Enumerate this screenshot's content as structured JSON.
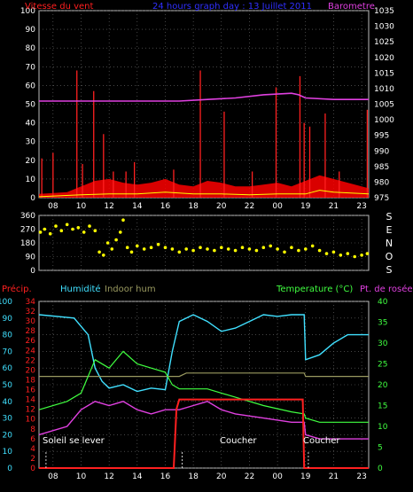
{
  "colors": {
    "wind": "#ff2020",
    "baro": "#e040e0",
    "title": "#3030ff",
    "gust_fill": "#ff0000",
    "wind_avg": "#ffff00",
    "sky": "#ffffff",
    "humidity": "#40e0ff",
    "indoor_hum": "#9a9a60",
    "temperature": "#40ff40",
    "dew_point": "#e040e0",
    "precip": "#ff2020",
    "text": "#ffffff",
    "grid": "#707070"
  },
  "header": {
    "wind_label": "Vitesse du vent",
    "title": "24 hours graph day : 13 Juillet 2011",
    "baro_label": "Barometre"
  },
  "panel3_labels": {
    "precip": "Précip.",
    "humidity": "Humidité",
    "indoor_hum": "Indoor hum",
    "temperature": "Temperature (°C)",
    "dew_point": "Pt. de rosée"
  },
  "annotations": {
    "sunrise": "Soleil se lever",
    "sunset1": "Coucher",
    "sunset2": "Coucher"
  },
  "direction_letters": [
    "S",
    "E",
    "N",
    "O",
    "S"
  ],
  "chart_data": [
    {
      "type": "area",
      "name": "wind_and_pressure",
      "x_ticks": [
        "08",
        "10",
        "12",
        "14",
        "16",
        "18",
        "20",
        "22",
        "00",
        "19",
        "21",
        "23"
      ],
      "y_left": {
        "label": "Vitesse du vent",
        "ticks": [
          0,
          10,
          20,
          30,
          40,
          50,
          60,
          70,
          80,
          90,
          100
        ],
        "ylim": [
          0,
          100
        ]
      },
      "y_right": {
        "label": "Barometre",
        "ticks": [
          975,
          980,
          985,
          990,
          995,
          1000,
          1005,
          1010,
          1015,
          1020,
          1025,
          1030,
          1035
        ],
        "ylim": [
          975,
          1035
        ]
      },
      "pressure_series": [
        [
          6,
          1006
        ],
        [
          9,
          1006
        ],
        [
          12,
          1006
        ],
        [
          14,
          1006
        ],
        [
          16,
          1006
        ],
        [
          18,
          1006.5
        ],
        [
          20,
          1007
        ],
        [
          22,
          1008
        ],
        [
          24,
          1008.5
        ],
        [
          24.5,
          1008
        ],
        [
          25,
          1007
        ],
        [
          27,
          1006.5
        ],
        [
          29.5,
          1006.5
        ]
      ],
      "wind_gust_spikes": [
        [
          6.2,
          21
        ],
        [
          7.0,
          24
        ],
        [
          8.7,
          68
        ],
        [
          9.1,
          18
        ],
        [
          9.9,
          57
        ],
        [
          10.6,
          34
        ],
        [
          11.3,
          14
        ],
        [
          12.2,
          14
        ],
        [
          12.8,
          19
        ],
        [
          15.6,
          15
        ],
        [
          17.5,
          68
        ],
        [
          19.2,
          46
        ],
        [
          21.2,
          14
        ],
        [
          22.9,
          59
        ],
        [
          24.6,
          65
        ],
        [
          24.9,
          40
        ],
        [
          25.3,
          38
        ],
        [
          26.4,
          45
        ],
        [
          27.4,
          14
        ],
        [
          29.4,
          47
        ]
      ],
      "wind_gust_base": [
        [
          6,
          2
        ],
        [
          8,
          3
        ],
        [
          9,
          6
        ],
        [
          10,
          9
        ],
        [
          11,
          10
        ],
        [
          12,
          8
        ],
        [
          13,
          7
        ],
        [
          14,
          8
        ],
        [
          15,
          10
        ],
        [
          16,
          7
        ],
        [
          17,
          6
        ],
        [
          18,
          9
        ],
        [
          19,
          8
        ],
        [
          20,
          6
        ],
        [
          21,
          6
        ],
        [
          22,
          7
        ],
        [
          23,
          8
        ],
        [
          24,
          6
        ],
        [
          25,
          9
        ],
        [
          26,
          12
        ],
        [
          27,
          10
        ],
        [
          28,
          8
        ],
        [
          29.5,
          5
        ]
      ],
      "wind_avg": [
        [
          6,
          0.5
        ],
        [
          9,
          1.5
        ],
        [
          11,
          2
        ],
        [
          13,
          2
        ],
        [
          15,
          3
        ],
        [
          17,
          2
        ],
        [
          19,
          2
        ],
        [
          21,
          1.5
        ],
        [
          23,
          2
        ],
        [
          25,
          2
        ],
        [
          26,
          4
        ],
        [
          27,
          3
        ],
        [
          29.5,
          2
        ]
      ]
    },
    {
      "type": "scatter",
      "name": "wind_direction",
      "y_ticks": [
        0,
        90,
        180,
        270,
        360
      ],
      "ylim": [
        0,
        360
      ],
      "points": [
        [
          6.1,
          250
        ],
        [
          6.4,
          270
        ],
        [
          6.8,
          240
        ],
        [
          7.2,
          290
        ],
        [
          7.6,
          260
        ],
        [
          8.0,
          300
        ],
        [
          8.4,
          270
        ],
        [
          8.8,
          280
        ],
        [
          9.2,
          250
        ],
        [
          9.6,
          290
        ],
        [
          10.0,
          260
        ],
        [
          10.3,
          120
        ],
        [
          10.6,
          100
        ],
        [
          10.9,
          180
        ],
        [
          11.2,
          140
        ],
        [
          11.5,
          200
        ],
        [
          11.8,
          250
        ],
        [
          12.0,
          330
        ],
        [
          12.3,
          150
        ],
        [
          12.6,
          120
        ],
        [
          13.0,
          160
        ],
        [
          13.5,
          140
        ],
        [
          14.0,
          150
        ],
        [
          14.5,
          170
        ],
        [
          15.0,
          150
        ],
        [
          15.5,
          140
        ],
        [
          16.0,
          120
        ],
        [
          16.5,
          140
        ],
        [
          17.0,
          130
        ],
        [
          17.5,
          150
        ],
        [
          18.0,
          140
        ],
        [
          18.5,
          130
        ],
        [
          19.0,
          150
        ],
        [
          19.5,
          140
        ],
        [
          20.0,
          130
        ],
        [
          20.5,
          150
        ],
        [
          21.0,
          140
        ],
        [
          21.5,
          130
        ],
        [
          22.0,
          150
        ],
        [
          22.5,
          160
        ],
        [
          23.0,
          140
        ],
        [
          23.5,
          120
        ],
        [
          24.0,
          150
        ],
        [
          24.5,
          130
        ],
        [
          25.0,
          140
        ],
        [
          25.5,
          160
        ],
        [
          26.0,
          130
        ],
        [
          26.5,
          110
        ],
        [
          27.0,
          120
        ],
        [
          27.5,
          100
        ],
        [
          28.0,
          110
        ],
        [
          28.5,
          90
        ],
        [
          29.0,
          100
        ],
        [
          29.4,
          110
        ]
      ]
    },
    {
      "type": "line",
      "name": "humidity_temperature",
      "x_ticks": [
        "08",
        "10",
        "12",
        "14",
        "16",
        "18",
        "20",
        "22",
        "00",
        "19",
        "21",
        "23"
      ],
      "y_left_humidity": {
        "label": "Humidité",
        "ticks": [
          0,
          10,
          20,
          30,
          40,
          50,
          60,
          70,
          80,
          90,
          100
        ],
        "ylim": [
          0,
          100
        ]
      },
      "y_left_precip": {
        "label": "Précip.",
        "ticks": [
          0,
          2,
          4,
          6,
          8,
          10,
          12,
          14,
          16,
          18,
          20,
          22,
          24,
          26,
          28,
          30,
          32,
          34
        ],
        "ylim": [
          0,
          34
        ]
      },
      "y_right": {
        "label": "Temperature (°C)",
        "ticks": [
          0,
          5,
          10,
          15,
          20,
          25,
          30,
          35,
          40
        ],
        "ylim": [
          0,
          40
        ]
      },
      "series": [
        {
          "name": "Humidité",
          "values": [
            [
              6,
              92
            ],
            [
              8.5,
              90
            ],
            [
              9.5,
              80
            ],
            [
              10,
              60
            ],
            [
              10.5,
              52
            ],
            [
              11,
              48
            ],
            [
              12,
              50
            ],
            [
              13,
              46
            ],
            [
              14,
              48
            ],
            [
              15,
              47
            ],
            [
              15.5,
              70
            ],
            [
              16,
              88
            ],
            [
              17,
              92
            ],
            [
              18,
              88
            ],
            [
              19,
              82
            ],
            [
              20,
              84
            ],
            [
              21,
              88
            ],
            [
              22,
              92
            ],
            [
              23,
              91
            ],
            [
              24,
              92
            ],
            [
              24.9,
              92
            ],
            [
              25,
              65
            ],
            [
              26,
              68
            ],
            [
              27,
              75
            ],
            [
              28,
              80
            ],
            [
              29.5,
              80
            ]
          ]
        },
        {
          "name": "Indoor hum",
          "values": [
            [
              6,
              55
            ],
            [
              16,
              55
            ],
            [
              16.5,
              57
            ],
            [
              24.9,
              57
            ],
            [
              25,
              55
            ],
            [
              29.5,
              55
            ]
          ]
        },
        {
          "name": "Temperature (°C)",
          "values": [
            [
              6,
              14
            ],
            [
              8,
              16
            ],
            [
              9,
              18
            ],
            [
              10,
              26
            ],
            [
              11,
              24
            ],
            [
              12,
              28
            ],
            [
              13,
              25
            ],
            [
              14,
              24
            ],
            [
              15,
              23
            ],
            [
              15.5,
              20
            ],
            [
              16,
              19
            ],
            [
              18,
              19
            ],
            [
              20,
              17
            ],
            [
              22,
              15
            ],
            [
              24,
              13.5
            ],
            [
              24.9,
              13
            ],
            [
              25,
              12
            ],
            [
              26,
              11
            ],
            [
              28,
              11
            ],
            [
              29.5,
              11
            ]
          ]
        },
        {
          "name": "Pt. de rosée",
          "values": [
            [
              6,
              8
            ],
            [
              8,
              10
            ],
            [
              9,
              14
            ],
            [
              10,
              16
            ],
            [
              11,
              15
            ],
            [
              12,
              16
            ],
            [
              13,
              14
            ],
            [
              14,
              13
            ],
            [
              15,
              14
            ],
            [
              16,
              14
            ],
            [
              17,
              15
            ],
            [
              18,
              16
            ],
            [
              19,
              14
            ],
            [
              20,
              13
            ],
            [
              22,
              12
            ],
            [
              24,
              11
            ],
            [
              24.9,
              11
            ],
            [
              25,
              8
            ],
            [
              26,
              7
            ],
            [
              28,
              7
            ],
            [
              29.5,
              7
            ]
          ]
        },
        {
          "name": "Précip.",
          "values": [
            [
              6,
              0
            ],
            [
              15.6,
              0
            ],
            [
              15.8,
              12
            ],
            [
              16,
              14
            ],
            [
              24.8,
              14
            ],
            [
              24.9,
              0
            ],
            [
              29.5,
              0
            ]
          ]
        }
      ]
    }
  ]
}
